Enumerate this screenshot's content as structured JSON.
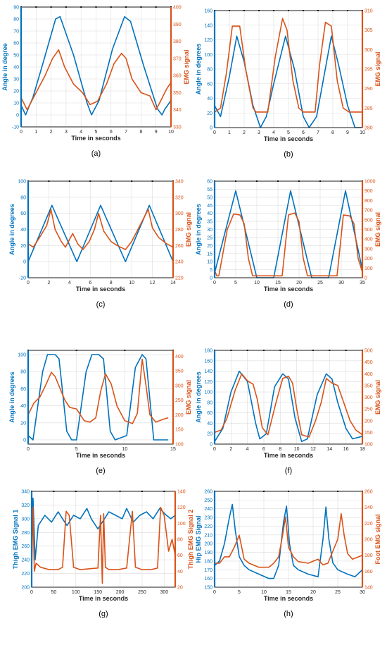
{
  "colors": {
    "left_series": "#0072bd",
    "right_series": "#d95319"
  },
  "chart_data": [
    {
      "type": "line",
      "caption": "(a)",
      "xlabel": "Time in seconds",
      "ylabel_left": "Angle in degree",
      "ylabel_right": "EMG signal",
      "xlim": [
        0,
        10
      ],
      "ylim_left": [
        -10,
        90
      ],
      "ylim_right": [
        330,
        400
      ],
      "xticks": [
        0,
        1,
        2,
        3,
        4,
        5,
        6,
        7,
        8,
        9,
        10
      ],
      "yticks_left": [
        -10,
        0,
        10,
        20,
        30,
        40,
        50,
        60,
        70,
        80,
        90
      ],
      "yticks_right": [
        330,
        340,
        350,
        360,
        370,
        380,
        390,
        400
      ],
      "series": [
        {
          "axis": "left",
          "x": [
            0,
            0.3,
            0.8,
            1.5,
            2.3,
            2.6,
            3.5,
            4.4,
            4.7,
            5.2,
            6.1,
            6.9,
            7.3,
            8.2,
            9.1,
            9.4,
            9.6,
            10
          ],
          "y": [
            8,
            0,
            15,
            45,
            80,
            82,
            50,
            10,
            0,
            12,
            55,
            82,
            78,
            40,
            5,
            0,
            5,
            12
          ]
        },
        {
          "axis": "right",
          "x": [
            0,
            0.4,
            1,
            1.6,
            2.1,
            2.5,
            2.9,
            3.5,
            4.1,
            4.6,
            5.1,
            5.7,
            6.2,
            6.7,
            7,
            7.4,
            8,
            8.6,
            9,
            9.3,
            9.7,
            10
          ],
          "y": [
            347,
            340,
            350,
            360,
            370,
            375,
            365,
            355,
            350,
            343,
            345,
            355,
            367,
            373,
            370,
            358,
            350,
            348,
            340,
            345,
            352,
            356
          ]
        }
      ]
    },
    {
      "type": "line",
      "caption": "(b)",
      "xlabel": "Time in seconds",
      "ylabel_left": "Angle in degrees",
      "ylabel_right": "EMG signal",
      "xlim": [
        0,
        10
      ],
      "ylim_left": [
        0,
        160
      ],
      "ylim_right": [
        280,
        310
      ],
      "xticks": [
        0,
        1,
        2,
        3,
        4,
        5,
        6,
        7,
        8,
        9,
        10
      ],
      "yticks_left": [
        0,
        20,
        40,
        60,
        80,
        100,
        120,
        140,
        160
      ],
      "yticks_right": [
        280,
        285,
        290,
        295,
        300,
        305,
        310
      ],
      "series": [
        {
          "axis": "left",
          "x": [
            0,
            0.4,
            1,
            1.5,
            2,
            2.6,
            3.1,
            3.5,
            4,
            4.8,
            5.4,
            6,
            6.4,
            6.9,
            7.4,
            7.9,
            8.4,
            9,
            9.5,
            10
          ],
          "y": [
            30,
            15,
            70,
            125,
            90,
            30,
            0,
            15,
            60,
            125,
            80,
            15,
            0,
            15,
            70,
            125,
            85,
            30,
            0,
            0
          ]
        },
        {
          "axis": "right",
          "x": [
            0,
            0.4,
            0.8,
            1.2,
            1.7,
            2.1,
            2.6,
            2.8,
            3.2,
            3.6,
            4.1,
            4.6,
            4.9,
            5.3,
            5.7,
            6,
            6.3,
            6.8,
            7.1,
            7.5,
            7.9,
            8.3,
            8.7,
            9.1,
            9.5,
            10
          ],
          "y": [
            284,
            285,
            294,
            306,
            306,
            295,
            285,
            284,
            284,
            284,
            298,
            308,
            305,
            292,
            285,
            284,
            284,
            284,
            296,
            307,
            306,
            292,
            285,
            284,
            284,
            284
          ]
        }
      ]
    },
    {
      "type": "line",
      "caption": "(c)",
      "xlabel": "Time in seconds",
      "ylabel_left": "Angle in degrees",
      "ylabel_right": "EMG signal",
      "xlim": [
        0,
        14
      ],
      "ylim_left": [
        -20,
        100
      ],
      "ylim_right": [
        220,
        340
      ],
      "xticks": [
        0,
        2,
        4,
        6,
        8,
        10,
        12,
        14
      ],
      "yticks_left": [
        -20,
        0,
        20,
        40,
        60,
        80,
        100
      ],
      "yticks_right": [
        220,
        240,
        260,
        280,
        300,
        320,
        340
      ],
      "series": [
        {
          "axis": "left",
          "x": [
            0,
            2.3,
            4.7,
            7,
            9.4,
            11.7,
            14
          ],
          "y": [
            0,
            70,
            0,
            70,
            0,
            70,
            0
          ]
        },
        {
          "axis": "right",
          "x": [
            0,
            0.5,
            1.2,
            1.8,
            2.2,
            2.6,
            3.2,
            3.6,
            4.3,
            4.8,
            5.3,
            5.9,
            6.4,
            6.8,
            7.3,
            8,
            8.6,
            9.4,
            10,
            10.6,
            11.2,
            11.6,
            12,
            12.6,
            13.4,
            14
          ],
          "y": [
            262,
            258,
            272,
            285,
            305,
            280,
            265,
            258,
            275,
            262,
            255,
            265,
            280,
            300,
            278,
            265,
            260,
            255,
            265,
            280,
            295,
            305,
            282,
            270,
            262,
            258
          ]
        }
      ]
    },
    {
      "type": "line",
      "caption": "(d)",
      "xlabel": "Time in seconds",
      "ylabel_left": "Angle in degrees",
      "ylabel_right": "EMG signal",
      "xlim": [
        0,
        35
      ],
      "ylim_left": [
        0,
        60
      ],
      "ylim_right": [
        0,
        1000
      ],
      "xticks": [
        0,
        5,
        10,
        15,
        20,
        25,
        30,
        35
      ],
      "yticks_left": [
        0,
        5,
        10,
        15,
        20,
        25,
        30,
        35,
        40,
        45,
        50,
        55,
        60
      ],
      "yticks_right": [
        0,
        100,
        200,
        300,
        400,
        500,
        600,
        700,
        800,
        900,
        1000
      ],
      "series": [
        {
          "axis": "left",
          "x": [
            0,
            5,
            10,
            14,
            18,
            23,
            27,
            31,
            35
          ],
          "y": [
            3,
            54,
            0,
            0,
            54,
            0,
            0,
            54,
            5
          ]
        },
        {
          "axis": "right",
          "x": [
            0,
            0.5,
            1,
            3,
            4.5,
            6,
            7,
            8,
            9,
            16,
            17.5,
            19,
            20,
            21,
            22,
            29,
            30.5,
            32,
            33,
            34,
            35
          ],
          "y": [
            80,
            20,
            20,
            500,
            660,
            650,
            560,
            200,
            20,
            20,
            650,
            670,
            580,
            200,
            20,
            20,
            650,
            640,
            560,
            200,
            60
          ]
        }
      ]
    },
    {
      "type": "line",
      "caption": "(e)",
      "xlabel": "Time in seconds",
      "ylabel_left": "Angle in degrees",
      "ylabel_right": "EMG signal",
      "xlim": [
        0,
        15
      ],
      "ylim_left": [
        -5,
        105
      ],
      "ylim_right": [
        100,
        420
      ],
      "xticks": [
        0,
        5,
        10,
        15
      ],
      "yticks_left": [
        0,
        20,
        40,
        60,
        80,
        100
      ],
      "yticks_right": [
        100,
        150,
        200,
        250,
        300,
        350,
        400
      ],
      "series": [
        {
          "axis": "left",
          "x": [
            0,
            0.5,
            1.5,
            2,
            2.8,
            3.2,
            4,
            4.5,
            5,
            6,
            6.6,
            7.3,
            7.8,
            8.5,
            9,
            10.2,
            11.1,
            11.8,
            12.2,
            13,
            14.5
          ],
          "y": [
            5,
            0,
            80,
            100,
            100,
            95,
            10,
            0,
            0,
            80,
            100,
            100,
            95,
            10,
            0,
            5,
            85,
            100,
            95,
            0,
            0
          ]
        },
        {
          "axis": "right",
          "x": [
            0,
            0.6,
            1.2,
            1.8,
            2.4,
            2.8,
            3.3,
            3.8,
            4.3,
            5,
            5.8,
            6.4,
            7,
            7.5,
            8,
            8.6,
            9.2,
            10,
            10.8,
            11.3,
            11.8,
            12.2,
            12.6,
            13.2,
            14,
            14.5
          ],
          "y": [
            200,
            240,
            260,
            300,
            345,
            330,
            290,
            250,
            225,
            220,
            180,
            175,
            190,
            280,
            340,
            305,
            230,
            180,
            170,
            205,
            390,
            300,
            200,
            175,
            185,
            190
          ]
        }
      ]
    },
    {
      "type": "line",
      "caption": "(f)",
      "xlabel": "Time in seconds",
      "ylabel_left": "Angle in degrees",
      "ylabel_right": "EMG signal",
      "xlim": [
        0,
        18
      ],
      "ylim_left": [
        0,
        180
      ],
      "ylim_right": [
        100,
        500
      ],
      "xticks": [
        0,
        2,
        4,
        6,
        8,
        10,
        12,
        14,
        16,
        18
      ],
      "yticks_left": [
        0,
        20,
        40,
        60,
        80,
        100,
        120,
        140,
        160,
        180
      ],
      "yticks_right": [
        100,
        150,
        200,
        250,
        300,
        350,
        400,
        450,
        500
      ],
      "series": [
        {
          "axis": "left",
          "x": [
            0,
            1,
            2,
            3,
            4,
            5,
            5.5,
            6.3,
            7.3,
            8.3,
            9,
            9.8,
            10.6,
            11.3,
            12.5,
            13.6,
            14.3,
            15,
            16,
            16.8,
            18
          ],
          "y": [
            5,
            30,
            100,
            140,
            120,
            40,
            10,
            20,
            110,
            135,
            125,
            50,
            5,
            10,
            95,
            135,
            125,
            80,
            30,
            10,
            15
          ]
        },
        {
          "axis": "right",
          "x": [
            0,
            0.8,
            1.5,
            2.5,
            3.3,
            4,
            4.7,
            5.2,
            5.8,
            6.5,
            7.5,
            8.3,
            9,
            9.5,
            10,
            10.6,
            11.5,
            12.3,
            13,
            13.6,
            14.3,
            15,
            15.7,
            16.5,
            17.2,
            18
          ],
          "y": [
            150,
            160,
            210,
            330,
            400,
            370,
            355,
            290,
            170,
            140,
            280,
            380,
            390,
            360,
            250,
            140,
            130,
            200,
            280,
            380,
            360,
            350,
            280,
            200,
            160,
            140
          ]
        }
      ]
    },
    {
      "type": "line",
      "caption": "(g)",
      "xlabel": "Time in seconds",
      "ylabel_left": "Thigh EMG Signal 1",
      "ylabel_right": "Thigh EMG Signal 2",
      "xlim": [
        0,
        325
      ],
      "ylim_left": [
        200,
        340
      ],
      "ylim_right": [
        20,
        140
      ],
      "xticks": [
        0,
        50,
        100,
        150,
        200,
        250,
        300
      ],
      "yticks_left": [
        200,
        220,
        240,
        260,
        280,
        300,
        320,
        340
      ],
      "yticks_right": [
        20,
        40,
        60,
        80,
        100,
        120,
        140
      ],
      "series": [
        {
          "axis": "left",
          "x": [
            0,
            3,
            8,
            15,
            30,
            45,
            60,
            70,
            80,
            95,
            110,
            125,
            135,
            150,
            160,
            175,
            190,
            205,
            215,
            230,
            245,
            260,
            275,
            290,
            305,
            315,
            325
          ],
          "y": [
            300,
            330,
            240,
            290,
            305,
            295,
            310,
            300,
            290,
            305,
            300,
            315,
            300,
            285,
            295,
            310,
            305,
            300,
            315,
            295,
            305,
            310,
            300,
            315,
            305,
            300,
            305
          ]
        },
        {
          "axis": "right",
          "x": [
            0,
            3,
            6,
            10,
            20,
            40,
            60,
            70,
            78,
            85,
            95,
            110,
            130,
            150,
            156,
            160,
            163,
            167,
            175,
            195,
            215,
            228,
            235,
            250,
            270,
            285,
            292,
            300,
            310,
            318,
            325
          ],
          "y": [
            40,
            120,
            40,
            50,
            45,
            42,
            42,
            45,
            115,
            110,
            45,
            42,
            43,
            44,
            110,
            25,
            112,
            45,
            42,
            42,
            44,
            115,
            45,
            42,
            42,
            44,
            120,
            110,
            65,
            80,
            60
          ]
        }
      ]
    },
    {
      "type": "line",
      "caption": "(h)",
      "xlabel": "Time in seconds",
      "ylabel_left": "Hip EMG Signal",
      "ylabel_right": "Foot EMG signal",
      "xlim": [
        0,
        30
      ],
      "ylim_left": [
        150,
        260
      ],
      "ylim_right": [
        140,
        260
      ],
      "xticks": [
        0,
        5,
        10,
        15,
        20,
        25,
        30
      ],
      "yticks_left": [
        150,
        160,
        170,
        180,
        190,
        200,
        210,
        220,
        230,
        240,
        250,
        260
      ],
      "yticks_right": [
        140,
        160,
        180,
        200,
        220,
        240,
        260
      ],
      "series": [
        {
          "axis": "left",
          "x": [
            0,
            1,
            2,
            3,
            3.6,
            4.2,
            5,
            6,
            7,
            9,
            11,
            12,
            13,
            14,
            14.6,
            15.2,
            16,
            17,
            19,
            21,
            22,
            22.6,
            23.2,
            24,
            25,
            27,
            28.5,
            30
          ],
          "y": [
            175,
            180,
            200,
            230,
            245,
            215,
            185,
            175,
            170,
            165,
            160,
            160,
            175,
            225,
            243,
            200,
            175,
            170,
            165,
            162,
            205,
            242,
            205,
            178,
            170,
            165,
            162,
            170
          ]
        },
        {
          "axis": "right",
          "x": [
            0,
            1,
            2,
            3,
            4,
            5,
            6,
            7,
            9,
            11,
            12,
            13,
            13.8,
            14.4,
            15,
            16,
            17,
            19,
            21,
            22,
            23,
            24,
            25,
            25.7,
            26.3,
            27,
            28,
            30
          ],
          "y": [
            170,
            170,
            178,
            178,
            190,
            205,
            175,
            170,
            165,
            165,
            170,
            178,
            205,
            228,
            190,
            178,
            172,
            170,
            175,
            168,
            170,
            185,
            200,
            232,
            205,
            182,
            175,
            180
          ]
        }
      ]
    }
  ]
}
